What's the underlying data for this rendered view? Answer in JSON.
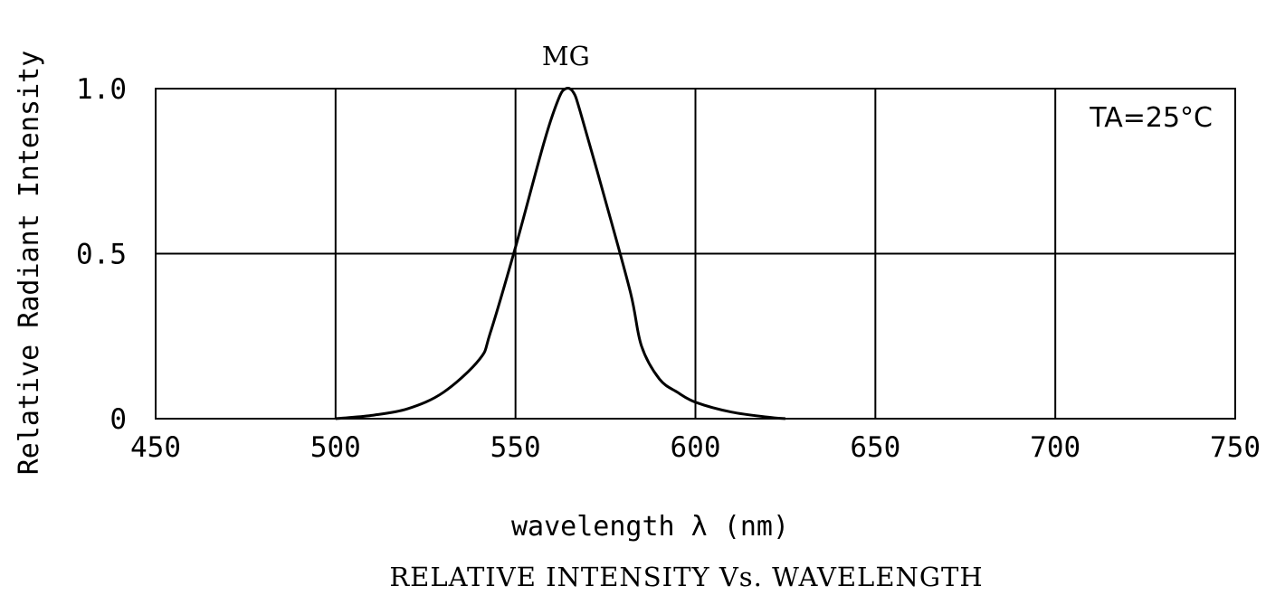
{
  "chart_data": {
    "type": "line",
    "title": "RELATIVE INTENSITY Vs. WAVELENGTH",
    "xlabel": "wavelength λ (nm)",
    "ylabel": "Relative Radiant Intensity",
    "xlim": [
      450,
      750
    ],
    "ylim": [
      0,
      1.0
    ],
    "x_ticks": [
      "450",
      "500",
      "550",
      "600",
      "650",
      "700",
      "750"
    ],
    "y_ticks": [
      "0",
      "0.5",
      "1.0"
    ],
    "grid": true,
    "annotation": "TA=25°C",
    "series": [
      {
        "name": "MG",
        "x": [
          500,
          510,
          520,
          530,
          540,
          543,
          550,
          558,
          562,
          564,
          566,
          568,
          575,
          582,
          585,
          590,
          595,
          600,
          610,
          620,
          625
        ],
        "y": [
          0,
          0.01,
          0.03,
          0.08,
          0.18,
          0.26,
          0.52,
          0.84,
          0.97,
          1.0,
          0.99,
          0.93,
          0.66,
          0.38,
          0.22,
          0.12,
          0.08,
          0.05,
          0.02,
          0.005,
          0
        ]
      }
    ]
  }
}
